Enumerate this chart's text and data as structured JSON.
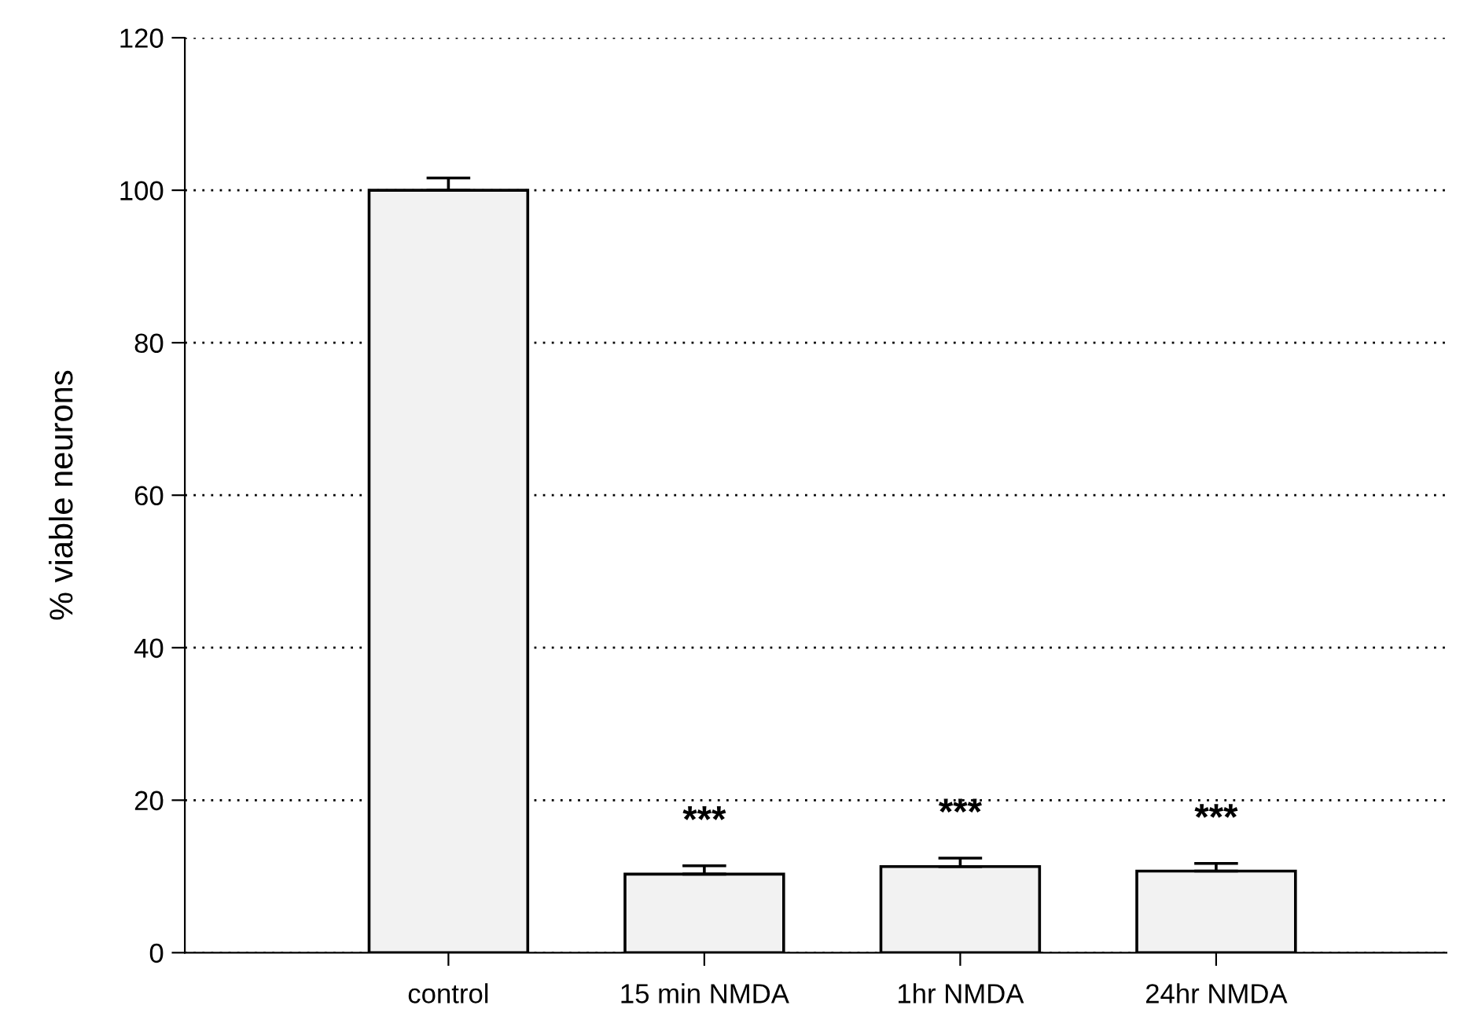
{
  "chart_data": {
    "type": "bar",
    "ylabel": "% viable neurons",
    "categories": [
      "control",
      "15 min NMDA",
      "1hr NMDA",
      "24hr NMDA"
    ],
    "values": [
      100,
      10.3,
      11.3,
      10.7
    ],
    "errors": [
      1.6,
      1.1,
      1.1,
      1.0
    ],
    "color": "#f2f2f2",
    "ylim": [
      0,
      120
    ],
    "yticks": [
      0,
      20,
      40,
      60,
      80,
      100,
      120
    ],
    "value_labels": [
      null,
      "***",
      "***",
      "***"
    ],
    "grid": "y",
    "legend": false
  }
}
